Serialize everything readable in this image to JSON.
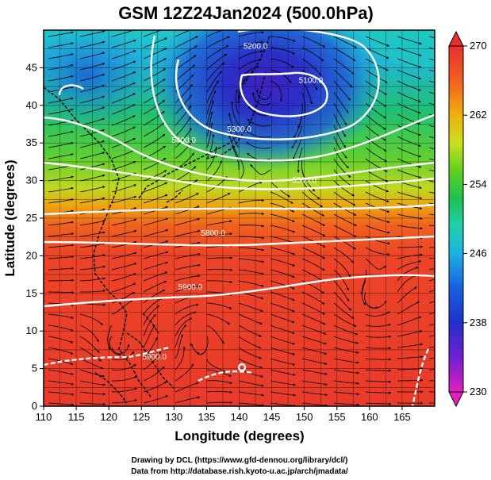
{
  "title": "GSM 12Z24Jan2024 (500.0hPa)",
  "map": {
    "xlabel": "Longitude (degrees)",
    "ylabel": "Latitude  (degrees)",
    "xlim": [
      110,
      170
    ],
    "ylim": [
      0,
      50
    ],
    "x_ticks": [
      110,
      115,
      120,
      125,
      130,
      135,
      140,
      145,
      150,
      155,
      160,
      165
    ],
    "y_ticks": [
      0,
      5,
      10,
      15,
      20,
      25,
      30,
      35,
      40,
      45
    ],
    "contour_labels": [
      {
        "text": "5200.0",
        "lon": 142.5,
        "lat": 47.5
      },
      {
        "text": "5100.0",
        "lon": 151,
        "lat": 43
      },
      {
        "text": "5300.0",
        "lon": 140,
        "lat": 36.5
      },
      {
        "text": "5400.0",
        "lon": 131.5,
        "lat": 35
      },
      {
        "text": "5500.0",
        "lon": 150,
        "lat": 29.7
      },
      {
        "text": "5800.0",
        "lon": 136,
        "lat": 22.7
      },
      {
        "text": "5900.0",
        "lon": 132.5,
        "lat": 15.5
      },
      {
        "text": "5900.0",
        "lon": 127,
        "lat": 6.2
      }
    ]
  },
  "colorbar": {
    "ticks": [
      230,
      238,
      246,
      254,
      262,
      270
    ],
    "range": [
      230,
      270
    ],
    "colors": [
      "#e020c0",
      "#7020d0",
      "#2030c8",
      "#1890e0",
      "#20d0d0",
      "#20c060",
      "#50d020",
      "#c8e020",
      "#f0b010",
      "#f06020",
      "#e83030"
    ]
  },
  "credits": {
    "line1": "Drawing by DCL (https://www.gfd-dennou.org/library/dcl/)",
    "line2": "Data from http://database.rish.kyoto-u.ac.jp/arch/jmadata/"
  }
}
